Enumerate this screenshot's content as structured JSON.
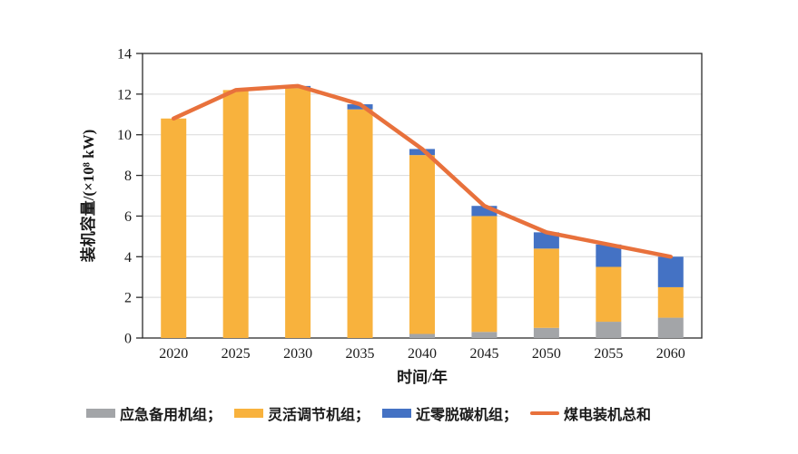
{
  "figure": {
    "background": "#FFFFFF"
  },
  "chart_data": {
    "type": "bar",
    "stacked": true,
    "title": "",
    "categories": [
      "2020",
      "2025",
      "2030",
      "2035",
      "2040",
      "2045",
      "2050",
      "2055",
      "2060"
    ],
    "series": [
      {
        "name": "应急备用机组",
        "type": "bar",
        "color": "#A3A5A8",
        "values": [
          0,
          0,
          0,
          0,
          0.2,
          0.3,
          0.5,
          0.8,
          1.0
        ]
      },
      {
        "name": "灵活调节机组",
        "type": "bar",
        "color": "#F8B23D",
        "values": [
          10.8,
          12.2,
          12.3,
          11.25,
          8.8,
          5.7,
          3.9,
          2.7,
          1.5
        ]
      },
      {
        "name": "近零脱碳机组",
        "type": "bar",
        "color": "#4472C4",
        "values": [
          0,
          0,
          0.1,
          0.25,
          0.3,
          0.5,
          0.8,
          1.1,
          1.5
        ]
      },
      {
        "name": "煤电装机总和",
        "type": "line",
        "color": "#E8713C",
        "values": [
          10.8,
          12.2,
          12.4,
          11.5,
          9.3,
          6.5,
          5.2,
          4.6,
          4.0
        ]
      }
    ],
    "legend_labels": [
      "应急备用机组；",
      "灵活调节机组；",
      "近零脱碳机组；",
      "煤电装机总和"
    ],
    "xlabel": "时间/年",
    "ylabel": "装机容量/(×10⁸ kW)",
    "ylim": [
      0,
      14
    ],
    "yticks": [
      0,
      2,
      4,
      6,
      8,
      10,
      12,
      14
    ],
    "grid": true,
    "legend_position": "bottom",
    "colors": {
      "grid": "#D9D9D9",
      "axis": "#2B2B2B",
      "text": "#1A1A1A"
    }
  }
}
